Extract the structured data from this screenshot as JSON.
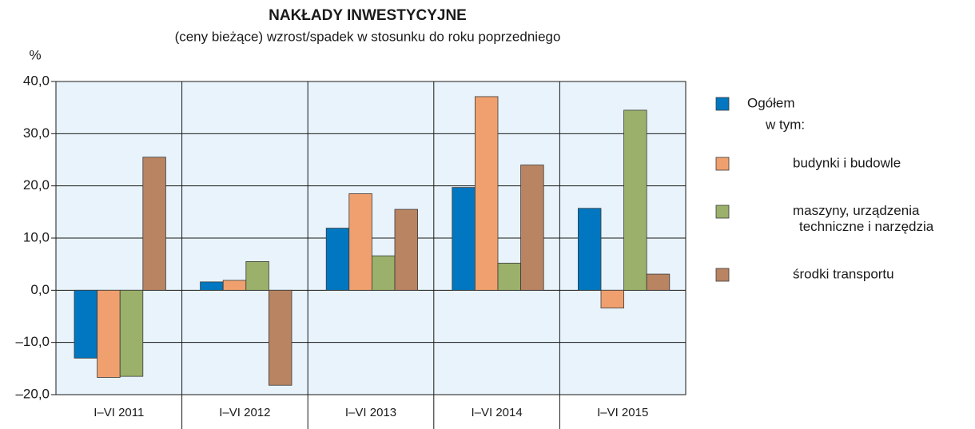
{
  "chart_data": {
    "type": "bar",
    "title": "NAKŁADY  INWESTYCYJNE",
    "subtitle": "(ceny bieżące) wzrost/spadek w stosunku do roku poprzedniego",
    "y_label": "%",
    "legend_subheading": "w tym:",
    "categories": [
      "I–VI 2011",
      "I–VI 2012",
      "I–VI 2013",
      "I–VI 2014",
      "I–VI 2015"
    ],
    "series": [
      {
        "name": "Ogółem",
        "color": "#0077c0",
        "values": [
          -13.0,
          1.6,
          11.9,
          19.7,
          15.7
        ]
      },
      {
        "name": "budynki i budowle",
        "color": "#f0a06e",
        "values": [
          -16.7,
          1.9,
          18.5,
          37.1,
          -3.4
        ]
      },
      {
        "name": "maszyny, urządzenia\ntechniczne i narzędzia",
        "color": "#9bb06a",
        "values": [
          -16.5,
          5.5,
          6.6,
          5.2,
          34.5
        ]
      },
      {
        "name": "środki transportu",
        "color": "#b98462",
        "values": [
          25.5,
          -18.2,
          15.5,
          24.0,
          3.1
        ]
      }
    ],
    "ylim": [
      -20,
      40
    ],
    "yticks": [
      {
        "value": -20,
        "label": "–20,0"
      },
      {
        "value": -10,
        "label": "–10,0"
      },
      {
        "value": 0,
        "label": "0,0"
      },
      {
        "value": 10,
        "label": "10,0"
      },
      {
        "value": 20,
        "label": "20,0"
      },
      {
        "value": 30,
        "label": "30,0"
      },
      {
        "value": 40,
        "label": "40,0"
      }
    ],
    "grid": true
  }
}
